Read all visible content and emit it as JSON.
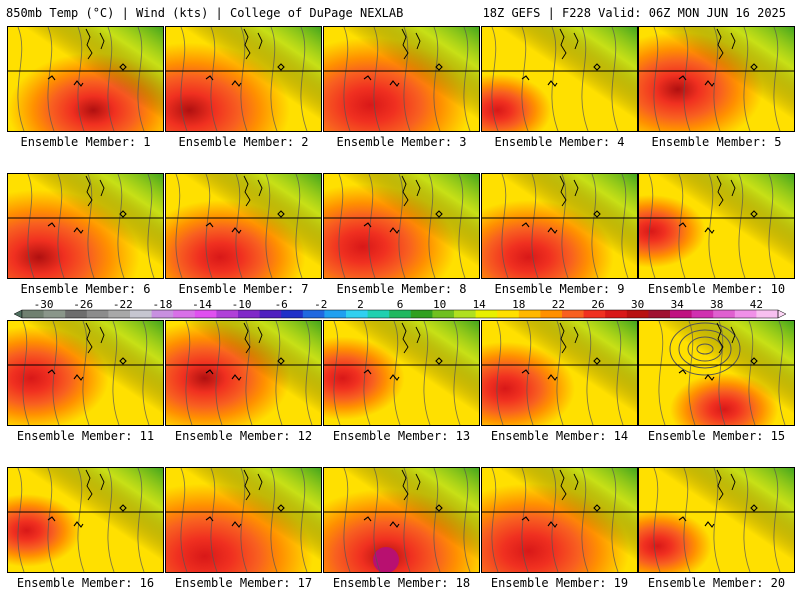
{
  "header": {
    "left": "850mb Temp (°C) | Wind (kts) | College of DuPage NEXLAB",
    "right": "18Z GEFS | F228 Valid: 06Z MON JUN 16 2025"
  },
  "panels": [
    {
      "label": "Ensemble Member: 1"
    },
    {
      "label": "Ensemble Member: 2"
    },
    {
      "label": "Ensemble Member: 3"
    },
    {
      "label": "Ensemble Member: 4"
    },
    {
      "label": "Ensemble Member: 5"
    },
    {
      "label": "Ensemble Member: 6"
    },
    {
      "label": "Ensemble Member: 7"
    },
    {
      "label": "Ensemble Member: 8"
    },
    {
      "label": "Ensemble Member: 9"
    },
    {
      "label": "Ensemble Member: 10"
    },
    {
      "label": "Ensemble Member: 11"
    },
    {
      "label": "Ensemble Member: 12"
    },
    {
      "label": "Ensemble Member: 13"
    },
    {
      "label": "Ensemble Member: 14"
    },
    {
      "label": "Ensemble Member: 15"
    },
    {
      "label": "Ensemble Member: 16"
    },
    {
      "label": "Ensemble Member: 17"
    },
    {
      "label": "Ensemble Member: 18"
    },
    {
      "label": "Ensemble Member: 19"
    },
    {
      "label": "Ensemble Member: 20"
    }
  ],
  "colorbar": {
    "tick_labels": [
      "-30",
      "-26",
      "-22",
      "-18",
      "-14",
      "-10",
      "-6",
      "-2",
      "2",
      "6",
      "10",
      "14",
      "18",
      "22",
      "26",
      "30",
      "34",
      "38",
      "42"
    ],
    "colors": [
      "#708070",
      "#8a968a",
      "#6e6e6e",
      "#8c8c8c",
      "#a8a8a8",
      "#c6c6d0",
      "#c890e0",
      "#d870e8",
      "#e050f0",
      "#b040d8",
      "#8028c8",
      "#5020c0",
      "#2030c8",
      "#2068e0",
      "#20a0f0",
      "#30d0f0",
      "#20d0b0",
      "#20b860",
      "#30a020",
      "#70c020",
      "#b0e020",
      "#e8f000",
      "#ffe000",
      "#ffb800",
      "#ff9000",
      "#f86020",
      "#f03020",
      "#d81818",
      "#b81010",
      "#a01030",
      "#c01080",
      "#d030b0",
      "#e060d0",
      "#f090e8",
      "#f8c0f0"
    ],
    "end_left_color": "#507060",
    "end_right_color": "#ffd8f8"
  }
}
